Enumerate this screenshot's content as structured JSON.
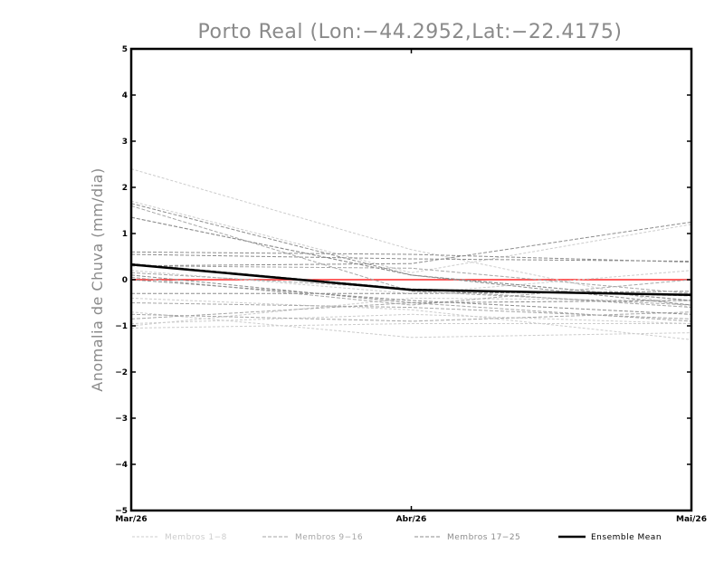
{
  "chart_data": {
    "type": "line",
    "title": "Porto Real (Lon:-44.2952,Lat:-22.4175)",
    "xlabel": "",
    "ylabel": "Anomalia de Chuva (mm/dia)",
    "categories": [
      "Mar/26",
      "Abr/26",
      "Mai/26"
    ],
    "ylim": [
      -5,
      5
    ],
    "yticks": [
      "5",
      "4",
      "3",
      "2",
      "1",
      "0",
      "-1",
      "-2",
      "-3",
      "-4",
      "-5"
    ],
    "grid": false,
    "legend_position": "bottom",
    "colors": {
      "group1": "#cccccc",
      "group2": "#a6a6a6",
      "group3": "#8c8c8c",
      "mean": "#000000",
      "zero_line": "#ff2a2a"
    },
    "legend": [
      {
        "label": "Membros 1-8",
        "color": "#cccccc"
      },
      {
        "label": "Membros 9-16",
        "color": "#a6a6a6"
      },
      {
        "label": "Membros 17-25",
        "color": "#8c8c8c"
      },
      {
        "label": "Ensemble Mean",
        "color": "#000000"
      }
    ],
    "series": [
      {
        "group": "Membros 1-8",
        "values": [
          2.4,
          0.65,
          -0.6
        ]
      },
      {
        "group": "Membros 1-8",
        "values": [
          1.7,
          0.15,
          1.2
        ]
      },
      {
        "group": "Membros 1-8",
        "values": [
          -0.95,
          -0.75,
          -0.95
        ]
      },
      {
        "group": "Membros 1-8",
        "values": [
          -0.7,
          -1.25,
          -1.15
        ]
      },
      {
        "group": "Membros 1-8",
        "values": [
          -0.4,
          -0.65,
          -1.3
        ]
      },
      {
        "group": "Membros 1-8",
        "values": [
          -1.05,
          -0.95,
          -0.95
        ]
      },
      {
        "group": "Membros 1-8",
        "values": [
          0.2,
          -0.3,
          0.2
        ]
      },
      {
        "group": "Membros 1-8",
        "values": [
          -1.0,
          -0.4,
          -0.45
        ]
      },
      {
        "group": "Membros 9-16",
        "values": [
          1.6,
          -0.25,
          -0.55
        ]
      },
      {
        "group": "Membros 9-16",
        "values": [
          -0.75,
          -0.9,
          -0.7
        ]
      },
      {
        "group": "Membros 9-16",
        "values": [
          0.05,
          -0.55,
          0.0
        ]
      },
      {
        "group": "Membros 9-16",
        "values": [
          0.3,
          0.25,
          -0.3
        ]
      },
      {
        "group": "Membros 9-16",
        "values": [
          -0.85,
          -0.5,
          -0.9
        ]
      },
      {
        "group": "Membros 9-16",
        "values": [
          1.35,
          0.1,
          -0.45
        ]
      },
      {
        "group": "Membros 9-16",
        "values": [
          -0.5,
          -0.6,
          -0.85
        ]
      },
      {
        "group": "Membros 9-16",
        "values": [
          0.15,
          -0.2,
          -0.6
        ]
      },
      {
        "group": "Membros 17-25",
        "values": [
          1.65,
          0.1,
          -0.55
        ]
      },
      {
        "group": "Membros 17-25",
        "values": [
          0.6,
          0.55,
          0.38
        ]
      },
      {
        "group": "Membros 17-25",
        "values": [
          0.3,
          0.35,
          1.25
        ]
      },
      {
        "group": "Membros 17-25",
        "values": [
          0.0,
          -0.45,
          -0.75
        ]
      },
      {
        "group": "Membros 17-25",
        "values": [
          1.35,
          0.1,
          -0.45
        ]
      },
      {
        "group": "Membros 17-25",
        "values": [
          0.35,
          -0.2,
          -0.35
        ]
      },
      {
        "group": "Membros 17-25",
        "values": [
          -0.3,
          -0.3,
          -0.25
        ]
      },
      {
        "group": "Membros 17-25",
        "values": [
          0.55,
          0.45,
          0.4
        ]
      },
      {
        "group": "Membros 17-25",
        "values": [
          0.1,
          -0.5,
          -0.45
        ]
      },
      {
        "group": "Ensemble Mean",
        "values": [
          0.33,
          -0.22,
          -0.33
        ]
      }
    ]
  }
}
